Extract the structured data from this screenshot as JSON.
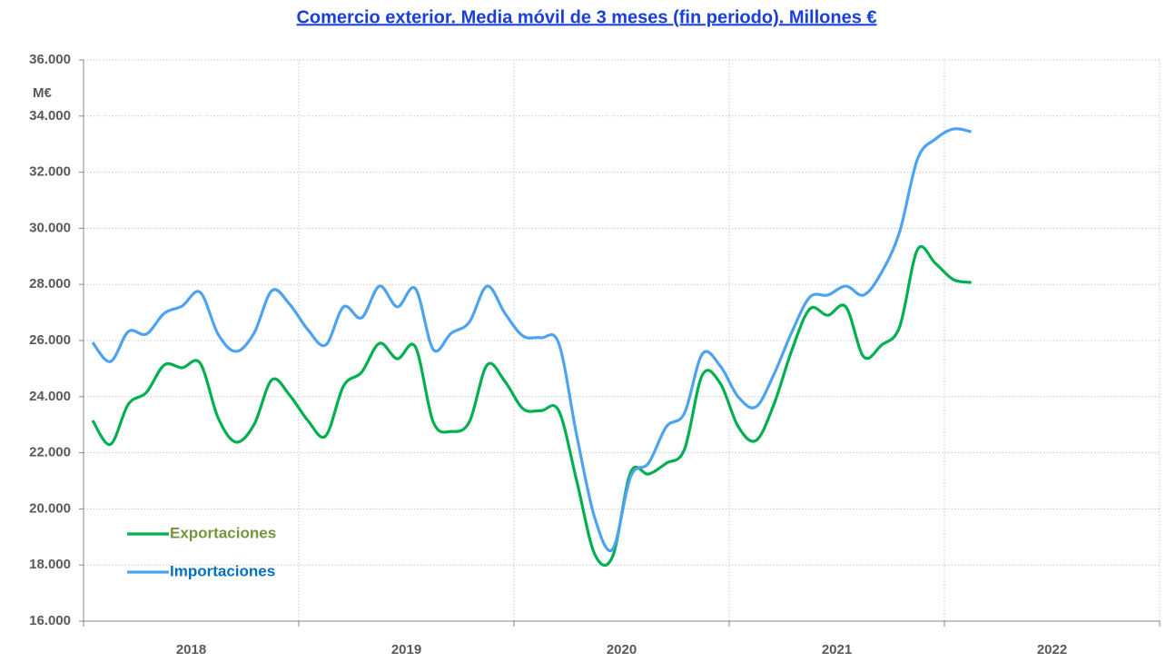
{
  "chart_data": {
    "type": "line",
    "title": "Comercio exterior. Media móvil de 3 meses (fin periodo). Millones €",
    "y_unit_label": "M€",
    "x": [
      2018.042,
      2018.125,
      2018.208,
      2018.292,
      2018.375,
      2018.458,
      2018.542,
      2018.625,
      2018.708,
      2018.792,
      2018.875,
      2018.958,
      2019.042,
      2019.125,
      2019.208,
      2019.292,
      2019.375,
      2019.458,
      2019.542,
      2019.625,
      2019.708,
      2019.792,
      2019.875,
      2019.958,
      2020.042,
      2020.125,
      2020.208,
      2020.292,
      2020.375,
      2020.458,
      2020.542,
      2020.625,
      2020.708,
      2020.792,
      2020.875,
      2020.958,
      2021.042,
      2021.125,
      2021.208,
      2021.292,
      2021.375,
      2021.458,
      2021.542,
      2021.625,
      2021.708,
      2021.792,
      2021.875,
      2021.958,
      2022.042,
      2022.125
    ],
    "series": [
      {
        "name": "Exportaciones",
        "color": "#00b050",
        "legend_text_color": "#77933c",
        "values": [
          23150,
          22300,
          23730,
          24150,
          25130,
          25030,
          25190,
          23250,
          22380,
          23000,
          24600,
          24050,
          23150,
          22600,
          24380,
          24870,
          25900,
          25350,
          25770,
          23090,
          22760,
          23090,
          25130,
          24540,
          23570,
          23500,
          23500,
          20980,
          18390,
          18300,
          21300,
          21240,
          21630,
          22120,
          24770,
          24480,
          22930,
          22440,
          23730,
          25680,
          27130,
          26900,
          27200,
          25420,
          25840,
          26490,
          29240,
          28750,
          28170,
          28070
        ]
      },
      {
        "name": "Importaciones",
        "color": "#4da3f0",
        "legend_text_color": "#0070c0",
        "values": [
          25930,
          25250,
          26320,
          26230,
          26970,
          27230,
          27720,
          26230,
          25610,
          26260,
          27780,
          27290,
          26390,
          25840,
          27200,
          26810,
          27940,
          27200,
          27850,
          25680,
          26260,
          26650,
          27940,
          26970,
          26160,
          26100,
          25900,
          22600,
          19690,
          18560,
          21150,
          21630,
          22930,
          23410,
          25520,
          25100,
          23990,
          23640,
          24800,
          26320,
          27550,
          27620,
          27940,
          27620,
          28430,
          29880,
          32470,
          33180,
          33540,
          33440
        ]
      }
    ],
    "xlim": [
      2018,
      2023
    ],
    "xgrid": [
      2018,
      2019,
      2020,
      2021,
      2022,
      2023
    ],
    "xticks": [
      {
        "value": 2018.5,
        "label": "2018"
      },
      {
        "value": 2019.5,
        "label": "2019"
      },
      {
        "value": 2020.5,
        "label": "2020"
      },
      {
        "value": 2021.5,
        "label": "2021"
      },
      {
        "value": 2022.5,
        "label": "2022"
      }
    ],
    "ylim": [
      16000,
      36000
    ],
    "yticks": [
      {
        "value": 16000,
        "label": "16.000"
      },
      {
        "value": 18000,
        "label": "18.000"
      },
      {
        "value": 20000,
        "label": "20.000"
      },
      {
        "value": 22000,
        "label": "22.000"
      },
      {
        "value": 24000,
        "label": "24.000"
      },
      {
        "value": 26000,
        "label": "26.000"
      },
      {
        "value": 28000,
        "label": "28.000"
      },
      {
        "value": 30000,
        "label": "30.000"
      },
      {
        "value": 32000,
        "label": "32.000"
      },
      {
        "value": 34000,
        "label": "34.000"
      },
      {
        "value": 36000,
        "label": "36.000"
      }
    ],
    "grid": true,
    "legend": "lower left"
  }
}
